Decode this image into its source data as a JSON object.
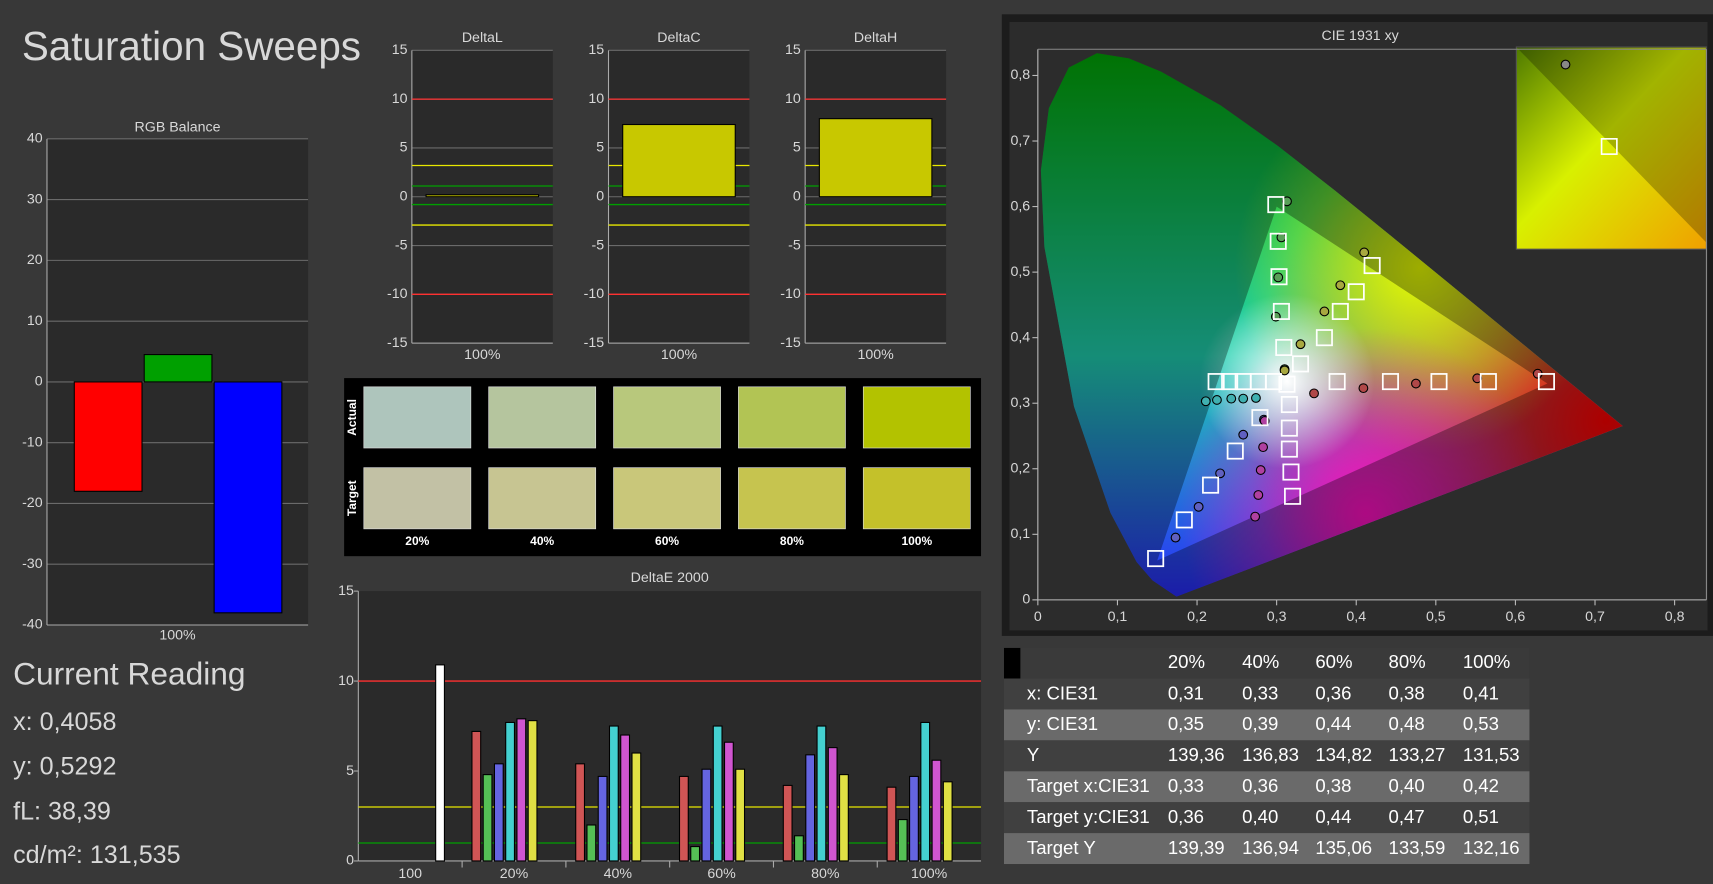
{
  "title": "Saturation Sweeps",
  "current_reading": {
    "heading": "Current Reading",
    "lines": [
      "x: 0,4058",
      "y: 0,5292",
      "fL: 38,39",
      "cd/m²: 131,535"
    ]
  },
  "swatches": {
    "rows": [
      "Actual",
      "Target"
    ],
    "columns": [
      "20%",
      "40%",
      "60%",
      "80%",
      "100%"
    ],
    "actual_colors": [
      "#aec5bc",
      "#b5c59e",
      "#b8c87c",
      "#b2c454",
      "#b3c200"
    ],
    "target_colors": [
      "#c2c1a5",
      "#c7c592",
      "#c9c77a",
      "#c6c44f",
      "#c4c12a"
    ]
  },
  "table": {
    "columns": [
      "20%",
      "40%",
      "60%",
      "80%",
      "100%"
    ],
    "rows": [
      {
        "label": "x: CIE31",
        "cells": [
          "0,31",
          "0,33",
          "0,36",
          "0,38",
          "0,41"
        ]
      },
      {
        "label": "y: CIE31",
        "cells": [
          "0,35",
          "0,39",
          "0,44",
          "0,48",
          "0,53"
        ]
      },
      {
        "label": "Y",
        "cells": [
          "139,36",
          "136,83",
          "134,82",
          "133,27",
          "131,53"
        ]
      },
      {
        "label": "Target x:CIE31",
        "cells": [
          "0,33",
          "0,36",
          "0,38",
          "0,40",
          "0,42"
        ]
      },
      {
        "label": "Target y:CIE31",
        "cells": [
          "0,36",
          "0,40",
          "0,44",
          "0,47",
          "0,51"
        ]
      },
      {
        "label": "Target Y",
        "cells": [
          "139,39",
          "136,94",
          "135,06",
          "133,59",
          "132,16"
        ]
      }
    ]
  },
  "chart_data": [
    {
      "type": "bar",
      "title": "RGB Balance",
      "categories": [
        "100%"
      ],
      "series": [
        {
          "color": "#ff0000",
          "values": [
            -18
          ]
        },
        {
          "color": "#00a000",
          "values": [
            4.5
          ]
        },
        {
          "color": "#0000ff",
          "values": [
            -38
          ]
        }
      ],
      "ylim": [
        -40,
        40
      ],
      "yticks": [
        -40,
        -30,
        -20,
        -10,
        0,
        10,
        20,
        30,
        40
      ],
      "grid": true
    },
    {
      "type": "bar",
      "title": "DeltaL",
      "categories": [
        "100%"
      ],
      "values": [
        0.2
      ],
      "color": "#c8c800",
      "ylim": [
        -15,
        15
      ],
      "yticks": [
        -15,
        -10,
        -5,
        0,
        5,
        10,
        15
      ],
      "grid": true,
      "reference_lines": [
        {
          "value": 10,
          "color": "#ff3030"
        },
        {
          "value": -10,
          "color": "#ff3030"
        },
        {
          "value": 3.2,
          "color": "#e8e800"
        },
        {
          "value": -2.9,
          "color": "#e8e800"
        },
        {
          "value": 1.1,
          "color": "#00a000"
        },
        {
          "value": -0.8,
          "color": "#00a000"
        }
      ]
    },
    {
      "type": "bar",
      "title": "DeltaC",
      "categories": [
        "100%"
      ],
      "values": [
        7.4
      ],
      "color": "#c8c800",
      "ylim": [
        -15,
        15
      ],
      "yticks": [
        -15,
        -10,
        -5,
        0,
        5,
        10,
        15
      ],
      "grid": true,
      "reference_lines": [
        {
          "value": 10,
          "color": "#ff3030"
        },
        {
          "value": -10,
          "color": "#ff3030"
        },
        {
          "value": 3.2,
          "color": "#e8e800"
        },
        {
          "value": -2.9,
          "color": "#e8e800"
        },
        {
          "value": 1.1,
          "color": "#00a000"
        },
        {
          "value": -0.8,
          "color": "#00a000"
        }
      ]
    },
    {
      "type": "bar",
      "title": "DeltaH",
      "categories": [
        "100%"
      ],
      "values": [
        8.0
      ],
      "color": "#c8c800",
      "ylim": [
        -15,
        15
      ],
      "yticks": [
        -15,
        -10,
        -5,
        0,
        5,
        10,
        15
      ],
      "grid": true,
      "reference_lines": [
        {
          "value": 10,
          "color": "#ff3030"
        },
        {
          "value": -10,
          "color": "#ff3030"
        },
        {
          "value": 3.2,
          "color": "#e8e800"
        },
        {
          "value": -2.9,
          "color": "#e8e800"
        },
        {
          "value": 1.1,
          "color": "#00a000"
        },
        {
          "value": -0.8,
          "color": "#00a000"
        }
      ]
    },
    {
      "type": "bar",
      "title": "DeltaE 2000",
      "categories": [
        "100",
        "20%",
        "40%",
        "60%",
        "80%",
        "100%"
      ],
      "series": [
        {
          "color": "#d05555",
          "values": [
            null,
            7.2,
            5.4,
            4.7,
            4.2,
            4.1
          ]
        },
        {
          "color": "#55c055",
          "values": [
            null,
            4.8,
            2.0,
            0.8,
            1.4,
            2.3
          ]
        },
        {
          "color": "#6464e0",
          "values": [
            null,
            5.4,
            4.7,
            5.1,
            5.9,
            4.7
          ]
        },
        {
          "color": "#44d0d0",
          "values": [
            null,
            7.7,
            7.5,
            7.5,
            7.5,
            7.7
          ]
        },
        {
          "color": "#d055d0",
          "values": [
            null,
            7.9,
            7.0,
            6.6,
            6.3,
            5.6
          ]
        },
        {
          "color": "#e0e044",
          "values": [
            null,
            7.8,
            6.0,
            5.1,
            4.8,
            4.4
          ]
        },
        {
          "color": "#ffffff",
          "values": [
            10.9,
            null,
            null,
            null,
            null,
            null
          ]
        }
      ],
      "ylim": [
        0,
        15
      ],
      "yticks": [
        0,
        5,
        10,
        15
      ],
      "grid": false,
      "reference_lines": [
        {
          "value": 10,
          "color": "#ff3030"
        },
        {
          "value": 3,
          "color": "#e8e800"
        },
        {
          "value": 1,
          "color": "#00a000"
        }
      ]
    },
    {
      "type": "scatter",
      "title": "CIE 1931 xy",
      "xlim": [
        0,
        0.84
      ],
      "ylim": [
        0,
        0.84
      ],
      "xticks": [
        0,
        {
          "value": 0.1,
          "label": "0,1"
        },
        {
          "value": 0.2,
          "label": "0,2"
        },
        {
          "value": 0.3,
          "label": "0,3"
        },
        {
          "value": 0.4,
          "label": "0,4"
        },
        {
          "value": 0.5,
          "label": "0,5"
        },
        {
          "value": 0.6,
          "label": "0,6"
        },
        {
          "value": 0.7,
          "label": "0,7"
        },
        {
          "value": 0.8,
          "label": "0,8"
        }
      ],
      "yticks": [
        0,
        {
          "value": 0.1,
          "label": "0,1"
        },
        {
          "value": 0.2,
          "label": "0,2"
        },
        {
          "value": 0.3,
          "label": "0,3"
        },
        {
          "value": 0.4,
          "label": "0,4"
        },
        {
          "value": 0.5,
          "label": "0,5"
        },
        {
          "value": 0.6,
          "label": "0,6"
        },
        {
          "value": 0.7,
          "label": "0,7"
        },
        {
          "value": 0.8,
          "label": "0,8"
        }
      ],
      "series": [
        {
          "marker": "circle",
          "color": "#b04848",
          "x": [
            0.347,
            0.409,
            0.475,
            0.552,
            0.628
          ],
          "y": [
            0.315,
            0.323,
            0.33,
            0.338,
            0.345
          ]
        },
        {
          "marker": "circle",
          "color": "#58a058",
          "x": [
            0.31,
            0.299,
            0.302,
            0.306,
            0.313
          ],
          "y": [
            0.352,
            0.432,
            0.492,
            0.553,
            0.608
          ]
        },
        {
          "marker": "circle",
          "color": "#6060c0",
          "x": [
            0.284,
            0.258,
            0.229,
            0.202,
            0.173
          ],
          "y": [
            0.275,
            0.252,
            0.193,
            0.142,
            0.095
          ]
        },
        {
          "marker": "circle",
          "color": "#40b0b0",
          "x": [
            0.274,
            0.258,
            0.243,
            0.225,
            0.211
          ],
          "y": [
            0.308,
            0.307,
            0.307,
            0.305,
            0.303
          ]
        },
        {
          "marker": "circle",
          "color": "#b040a0",
          "x": [
            0.285,
            0.283,
            0.28,
            0.277,
            0.273
          ],
          "y": [
            0.273,
            0.233,
            0.198,
            0.16,
            0.127
          ]
        },
        {
          "marker": "circle",
          "color": "#a8a840",
          "x": [
            0.31,
            0.33,
            0.36,
            0.38,
            0.41
          ],
          "y": [
            0.35,
            0.39,
            0.44,
            0.48,
            0.53
          ]
        },
        {
          "marker": "square",
          "color": "#ffffff",
          "x": [
            0.313,
            0.376,
            0.443,
            0.504,
            0.566,
            0.639,
            0.309,
            0.306,
            0.303,
            0.302,
            0.299,
            0.279,
            0.248,
            0.217,
            0.184,
            0.148,
            0.296,
            0.277,
            0.258,
            0.241,
            0.224,
            0.316,
            0.316,
            0.316,
            0.318,
            0.32,
            0.33,
            0.36,
            0.38,
            0.4,
            0.42
          ],
          "y": [
            0.329,
            0.333,
            0.333,
            0.333,
            0.333,
            0.333,
            0.385,
            0.44,
            0.493,
            0.547,
            0.603,
            0.278,
            0.227,
            0.175,
            0.122,
            0.063,
            0.333,
            0.333,
            0.333,
            0.333,
            0.333,
            0.298,
            0.262,
            0.23,
            0.195,
            0.158,
            0.36,
            0.4,
            0.44,
            0.47,
            0.51
          ]
        }
      ]
    }
  ]
}
